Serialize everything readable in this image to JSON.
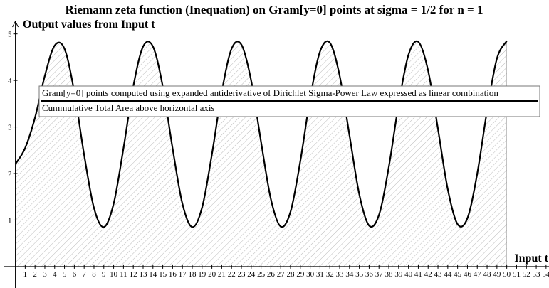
{
  "chart_data": {
    "type": "line",
    "title": "Riemann zeta function (Inequation) on Gram[y=0] points at sigma = 1/2 for n = 1",
    "y_label": "Output values from Input t",
    "x_label": "Input t",
    "x": [
      0,
      1,
      2,
      3,
      4,
      5,
      6,
      7,
      8,
      9,
      10,
      11,
      12,
      13,
      14,
      15,
      16,
      17,
      18,
      19,
      20,
      21,
      22,
      23,
      24,
      25,
      26,
      27,
      28,
      29,
      30,
      31,
      32,
      33,
      34,
      35,
      36,
      37,
      38,
      39,
      40,
      41,
      42,
      43,
      44,
      45,
      46,
      47,
      48,
      49,
      50
    ],
    "series": [
      {
        "name": "Gram[y=0] points computed using expanded antiderivative of Dirichlet Sigma-Power Law expressed as linear combination",
        "color": "#000000",
        "values": [
          2.2,
          2.55,
          3.2,
          4.1,
          4.75,
          4.68,
          3.75,
          2.4,
          1.26,
          0.85,
          1.35,
          2.54,
          3.87,
          4.73,
          4.73,
          3.87,
          2.54,
          1.35,
          0.85,
          1.27,
          2.41,
          3.75,
          4.68,
          4.77,
          3.99,
          2.68,
          1.45,
          0.86,
          1.18,
          2.27,
          3.62,
          4.62,
          4.81,
          4.1,
          2.82,
          1.55,
          0.88,
          1.11,
          2.14,
          3.49,
          4.55,
          4.83,
          4.21,
          2.96,
          1.66,
          0.91,
          1.04,
          2.0,
          3.35,
          4.47,
          4.85
        ]
      },
      {
        "name": "Cummulative Total Area above horizontal axis",
        "color": "#999999",
        "values": [
          2.2,
          2.55,
          3.2,
          4.1,
          4.75,
          4.68,
          3.75,
          2.4,
          1.26,
          0.85,
          1.35,
          2.54,
          3.87,
          4.73,
          4.73,
          3.87,
          2.54,
          1.35,
          0.85,
          1.27,
          2.41,
          3.75,
          4.68,
          4.77,
          3.99,
          2.68,
          1.45,
          0.86,
          1.18,
          2.27,
          3.62,
          4.62,
          4.81,
          4.1,
          2.82,
          1.55,
          0.88,
          1.11,
          2.14,
          3.49,
          4.55,
          4.83,
          4.21,
          2.96,
          1.66,
          0.91,
          1.04,
          2.0,
          3.35,
          4.47,
          4.85
        ]
      }
    ],
    "xlim": [
      -1.2,
      54.3
    ],
    "ylim": [
      -0.46,
      5.27
    ],
    "xticks": [
      1,
      2,
      3,
      4,
      5,
      6,
      7,
      8,
      9,
      10,
      11,
      12,
      13,
      14,
      15,
      16,
      17,
      18,
      19,
      20,
      21,
      22,
      23,
      24,
      25,
      26,
      27,
      28,
      29,
      30,
      31,
      32,
      33,
      34,
      35,
      36,
      37,
      38,
      39,
      40,
      41,
      42,
      43,
      44,
      45,
      46,
      47,
      48,
      49,
      50,
      51,
      52,
      53,
      54
    ],
    "yticks": [
      1,
      2,
      3,
      4,
      5
    ]
  }
}
